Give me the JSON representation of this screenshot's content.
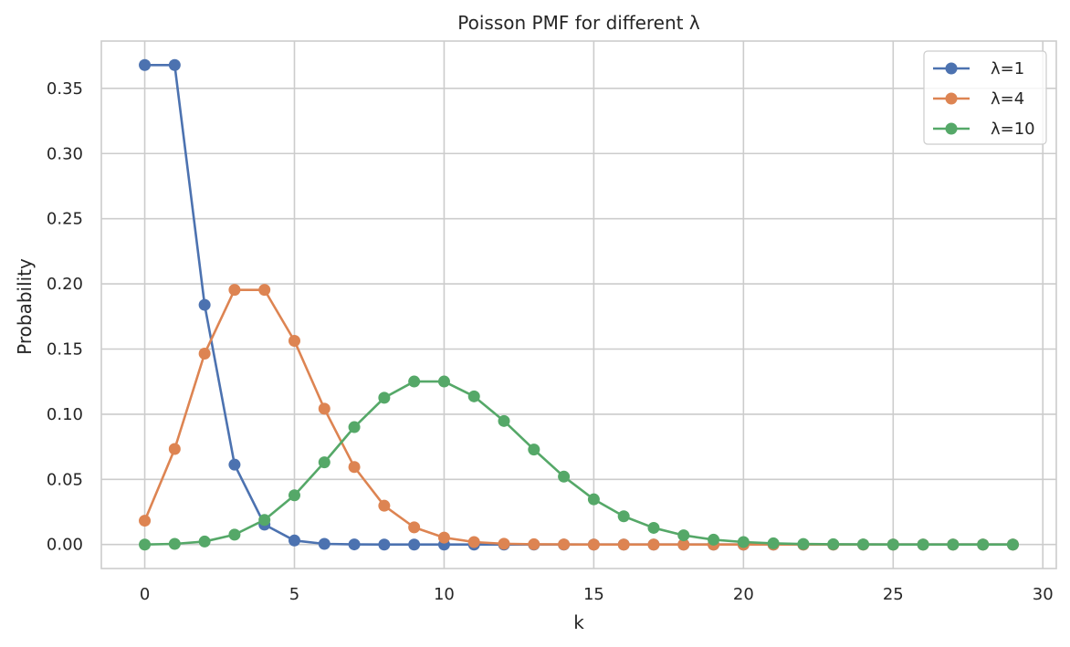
{
  "chart_data": {
    "type": "line",
    "title": "Poisson PMF for different λ",
    "xlabel": "k",
    "ylabel": "Probability",
    "xlim": [
      -1.45,
      30.45
    ],
    "ylim": [
      -0.0184,
      0.3863
    ],
    "xticks": [
      0,
      5,
      10,
      15,
      20,
      25,
      30
    ],
    "xtick_labels": [
      "0",
      "5",
      "10",
      "15",
      "20",
      "25",
      "30"
    ],
    "yticks": [
      0.0,
      0.05,
      0.1,
      0.15,
      0.2,
      0.25,
      0.3,
      0.35
    ],
    "ytick_labels": [
      "0.00",
      "0.05",
      "0.10",
      "0.15",
      "0.20",
      "0.25",
      "0.30",
      "0.35"
    ],
    "grid": true,
    "legend_position": "top-right",
    "x": [
      0,
      1,
      2,
      3,
      4,
      5,
      6,
      7,
      8,
      9,
      10,
      11,
      12,
      13,
      14,
      15,
      16,
      17,
      18,
      19,
      20,
      21,
      22,
      23,
      24,
      25,
      26,
      27,
      28,
      29
    ],
    "series": [
      {
        "name": "λ=1",
        "color": "#4c72b0",
        "values": [
          0.3679,
          0.3679,
          0.1839,
          0.0613,
          0.0153,
          0.0031,
          0.0005,
          0.0001,
          0.0,
          0.0,
          0.0,
          0.0,
          0.0,
          0.0,
          0.0,
          0.0,
          0.0,
          0.0,
          0.0,
          0.0,
          0.0,
          0.0,
          0.0,
          0.0,
          0.0,
          0.0,
          0.0,
          0.0,
          0.0,
          0.0
        ]
      },
      {
        "name": "λ=4",
        "color": "#dd8452",
        "values": [
          0.0183,
          0.0733,
          0.1465,
          0.1954,
          0.1954,
          0.1563,
          0.1042,
          0.0595,
          0.0298,
          0.0132,
          0.0053,
          0.0019,
          0.0006,
          0.0002,
          0.0001,
          0.0,
          0.0,
          0.0,
          0.0,
          0.0,
          0.0,
          0.0,
          0.0,
          0.0,
          0.0,
          0.0,
          0.0,
          0.0,
          0.0,
          0.0
        ]
      },
      {
        "name": "λ=10",
        "color": "#55a868",
        "values": [
          0.0,
          0.0005,
          0.0023,
          0.0076,
          0.0189,
          0.0378,
          0.0631,
          0.0901,
          0.1126,
          0.1251,
          0.1251,
          0.1137,
          0.0948,
          0.0729,
          0.0521,
          0.0347,
          0.0217,
          0.0128,
          0.0071,
          0.0037,
          0.0019,
          0.0009,
          0.0004,
          0.0002,
          0.0001,
          0.0,
          0.0,
          0.0,
          0.0,
          0.0
        ]
      }
    ]
  }
}
